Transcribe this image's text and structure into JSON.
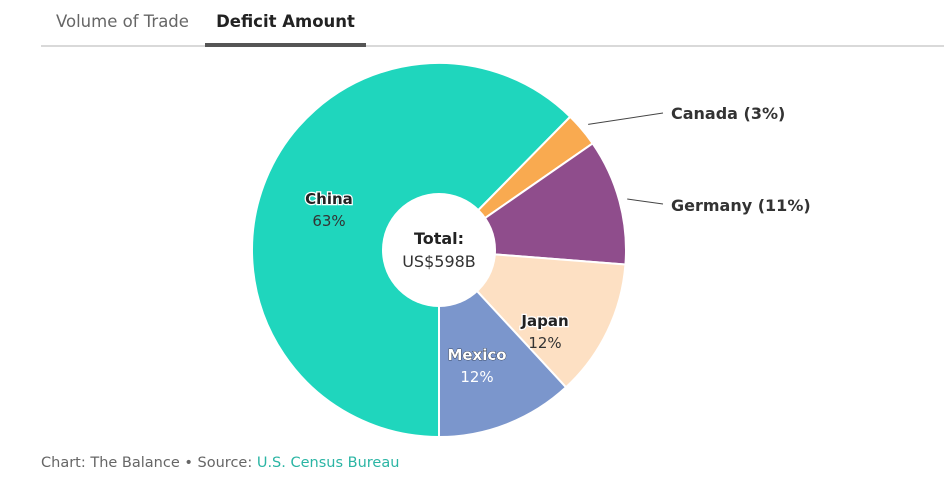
{
  "tabs": [
    {
      "label": "Volume of Trade",
      "active": false
    },
    {
      "label": "Deficit Amount",
      "active": true
    }
  ],
  "chart_data": {
    "type": "pie",
    "donut": true,
    "center_label": {
      "title": "Total:",
      "value": "US$598B"
    },
    "slices": [
      {
        "name": "China",
        "value": 63,
        "label": "China",
        "pct_label": "63%",
        "color": "#1fd6bd",
        "label_style": "inside-dark"
      },
      {
        "name": "Canada",
        "value": 3,
        "label": "Canada (3%)",
        "pct_label": "",
        "color": "#f9aa50",
        "label_style": "callout"
      },
      {
        "name": "Germany",
        "value": 11,
        "label": "Germany (11%)",
        "pct_label": "",
        "color": "#8f4d8c",
        "label_style": "callout"
      },
      {
        "name": "Japan",
        "value": 12,
        "label": "Japan",
        "pct_label": "12%",
        "color": "#fde0c3",
        "label_style": "inside-dark"
      },
      {
        "name": "Mexico",
        "value": 12,
        "label": "Mexico",
        "pct_label": "12%",
        "color": "#7b96cc",
        "label_style": "inside-light"
      }
    ]
  },
  "footer": {
    "chart_credit": "Chart: The Balance",
    "separator": "•",
    "source_prefix": "Source:",
    "source_link": "U.S. Census Bureau",
    "link_color": "#2bb5a4"
  }
}
